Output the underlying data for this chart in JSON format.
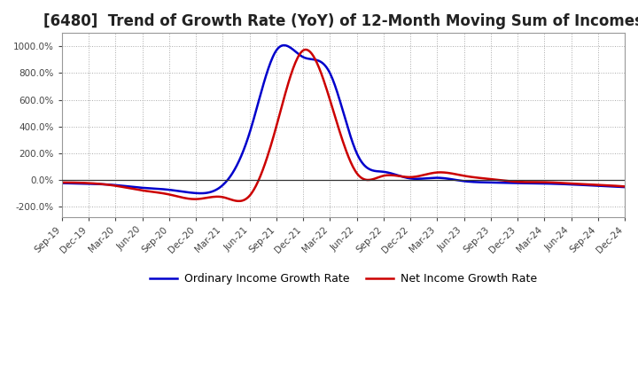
{
  "title": "[6480]  Trend of Growth Rate (YoY) of 12-Month Moving Sum of Incomes",
  "title_fontsize": 12,
  "ylim": [
    -280,
    1100
  ],
  "yticks": [
    -200,
    0,
    200,
    400,
    600,
    800,
    1000
  ],
  "background_color": "#ffffff",
  "grid_color": "#aaaaaa",
  "ordinary_color": "#0000cc",
  "net_color": "#cc0000",
  "legend_labels": [
    "Ordinary Income Growth Rate",
    "Net Income Growth Rate"
  ],
  "x_labels": [
    "Sep-19",
    "Dec-19",
    "Mar-20",
    "Jun-20",
    "Sep-20",
    "Dec-20",
    "Mar-21",
    "Jun-21",
    "Sep-21",
    "Dec-21",
    "Mar-22",
    "Jun-22",
    "Sep-22",
    "Dec-22",
    "Mar-23",
    "Jun-23",
    "Sep-23",
    "Dec-23",
    "Mar-24",
    "Jun-24",
    "Sep-24",
    "Dec-24"
  ],
  "ordinary_keypoints_x": [
    0,
    1,
    2,
    3,
    4,
    5,
    6,
    7,
    8,
    9,
    10,
    11,
    12,
    13,
    14,
    15,
    16,
    17,
    18,
    19,
    20,
    21
  ],
  "ordinary_keypoints_y": [
    -25,
    -30,
    -40,
    -60,
    -75,
    -100,
    -40,
    350,
    970,
    920,
    800,
    200,
    60,
    10,
    15,
    -10,
    -20,
    -25,
    -28,
    -35,
    -45,
    -55
  ],
  "net_keypoints_x": [
    0,
    1,
    2,
    3,
    4,
    5,
    6,
    7,
    8,
    9,
    10,
    11,
    12,
    13,
    14,
    15,
    16,
    17,
    18,
    19,
    20,
    21
  ],
  "net_keypoints_y": [
    -20,
    -25,
    -45,
    -80,
    -110,
    -145,
    -130,
    -120,
    400,
    970,
    600,
    50,
    30,
    20,
    55,
    30,
    5,
    -15,
    -18,
    -28,
    -38,
    -50
  ]
}
